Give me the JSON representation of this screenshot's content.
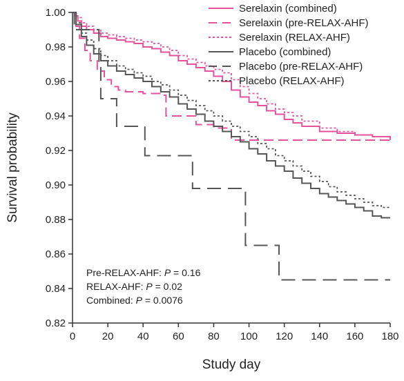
{
  "chart_data": {
    "type": "line",
    "title": "",
    "xlabel": "Study day",
    "ylabel": "Survival probability",
    "xlim": [
      0,
      180
    ],
    "ylim": [
      0.82,
      1.0
    ],
    "xticks": [
      "0",
      "20",
      "40",
      "60",
      "80",
      "100",
      "120",
      "140",
      "160",
      "180"
    ],
    "yticks": [
      "0.82",
      "0.84",
      "0.86",
      "0.88",
      "0.90",
      "0.92",
      "0.94",
      "0.96",
      "0.98",
      "1.00"
    ],
    "grid": false,
    "legend_position": "top-right",
    "colors": {
      "serelaxin": "#e6519c",
      "placebo": "#555555"
    },
    "series": [
      {
        "name": "Serelaxin (combined)",
        "group": "serelaxin",
        "style": "solid",
        "x": [
          0,
          1,
          3,
          5,
          8,
          12,
          16,
          20,
          25,
          30,
          35,
          40,
          45,
          50,
          55,
          60,
          65,
          70,
          75,
          80,
          85,
          90,
          95,
          100,
          105,
          110,
          115,
          120,
          125,
          130,
          140,
          150,
          160,
          170,
          180
        ],
        "y": [
          1.0,
          0.998,
          0.995,
          0.992,
          0.99,
          0.988,
          0.986,
          0.985,
          0.984,
          0.983,
          0.982,
          0.98,
          0.979,
          0.977,
          0.975,
          0.972,
          0.97,
          0.968,
          0.966,
          0.963,
          0.96,
          0.955,
          0.951,
          0.948,
          0.946,
          0.943,
          0.941,
          0.938,
          0.936,
          0.934,
          0.931,
          0.93,
          0.929,
          0.928,
          0.927
        ]
      },
      {
        "name": "Serelaxin (pre-RELAX-AHF)",
        "group": "serelaxin",
        "style": "dashed",
        "x": [
          0,
          2,
          4,
          7,
          10,
          14,
          18,
          22,
          26,
          30,
          40,
          52,
          53,
          60,
          70,
          80,
          85,
          90,
          100,
          120,
          140,
          160,
          180
        ],
        "y": [
          1.0,
          0.992,
          0.985,
          0.978,
          0.972,
          0.966,
          0.961,
          0.957,
          0.955,
          0.954,
          0.953,
          0.952,
          0.94,
          0.94,
          0.935,
          0.933,
          0.933,
          0.926,
          0.926,
          0.926,
          0.926,
          0.926,
          0.926
        ]
      },
      {
        "name": "Serelaxin (RELAX-AHF)",
        "group": "serelaxin",
        "style": "dotted",
        "x": [
          0,
          1,
          3,
          5,
          8,
          12,
          16,
          20,
          25,
          30,
          35,
          40,
          45,
          50,
          55,
          60,
          65,
          70,
          75,
          80,
          85,
          90,
          95,
          100,
          105,
          110,
          115,
          120,
          125,
          130,
          140,
          150,
          160,
          170,
          180
        ],
        "y": [
          1.0,
          0.999,
          0.997,
          0.994,
          0.992,
          0.99,
          0.988,
          0.987,
          0.986,
          0.985,
          0.984,
          0.983,
          0.982,
          0.98,
          0.978,
          0.975,
          0.973,
          0.971,
          0.969,
          0.967,
          0.965,
          0.961,
          0.957,
          0.953,
          0.95,
          0.947,
          0.944,
          0.942,
          0.94,
          0.937,
          0.933,
          0.931,
          0.929,
          0.928,
          0.926
        ]
      },
      {
        "name": "Placebo (combined)",
        "group": "placebo",
        "style": "solid",
        "x": [
          0,
          2,
          5,
          8,
          12,
          16,
          20,
          25,
          30,
          35,
          40,
          45,
          50,
          55,
          60,
          65,
          70,
          75,
          80,
          85,
          90,
          95,
          100,
          105,
          110,
          115,
          120,
          125,
          130,
          135,
          140,
          145,
          150,
          155,
          160,
          165,
          170,
          175,
          180
        ],
        "y": [
          1.0,
          0.993,
          0.986,
          0.981,
          0.976,
          0.972,
          0.969,
          0.966,
          0.964,
          0.962,
          0.96,
          0.957,
          0.954,
          0.951,
          0.947,
          0.944,
          0.941,
          0.937,
          0.934,
          0.931,
          0.928,
          0.925,
          0.921,
          0.918,
          0.914,
          0.911,
          0.908,
          0.904,
          0.901,
          0.898,
          0.895,
          0.893,
          0.891,
          0.889,
          0.887,
          0.885,
          0.882,
          0.881,
          0.881
        ]
      },
      {
        "name": "Placebo (pre-RELAX-AHF)",
        "group": "placebo",
        "style": "longdash",
        "x": [
          0,
          1,
          15,
          16,
          24,
          25,
          40,
          41,
          67,
          68,
          97,
          98,
          116,
          117,
          180
        ],
        "y": [
          1.0,
          0.99,
          0.97,
          0.95,
          0.95,
          0.934,
          0.934,
          0.917,
          0.917,
          0.898,
          0.898,
          0.865,
          0.865,
          0.845,
          0.845
        ]
      },
      {
        "name": "Placebo (RELAX-AHF)",
        "group": "placebo",
        "style": "dotted",
        "x": [
          0,
          2,
          5,
          8,
          12,
          16,
          20,
          25,
          30,
          35,
          40,
          45,
          50,
          55,
          60,
          65,
          70,
          75,
          80,
          85,
          90,
          95,
          100,
          105,
          110,
          115,
          120,
          125,
          130,
          135,
          140,
          145,
          150,
          155,
          160,
          165,
          170,
          175,
          180
        ],
        "y": [
          1.0,
          0.994,
          0.988,
          0.984,
          0.979,
          0.975,
          0.972,
          0.969,
          0.967,
          0.965,
          0.963,
          0.96,
          0.958,
          0.955,
          0.952,
          0.949,
          0.946,
          0.943,
          0.94,
          0.937,
          0.934,
          0.931,
          0.928,
          0.924,
          0.921,
          0.917,
          0.914,
          0.911,
          0.908,
          0.905,
          0.902,
          0.899,
          0.896,
          0.894,
          0.892,
          0.89,
          0.888,
          0.887,
          0.887
        ]
      }
    ],
    "annotations": [
      {
        "label": "Pre-RELAX-AHF: ",
        "p": "P",
        "value": " = 0.16"
      },
      {
        "label": "RELAX-AHF: ",
        "p": "P",
        "value": " = 0.02"
      },
      {
        "label": "Combined: ",
        "p": "P",
        "value": " = 0.0076"
      }
    ]
  }
}
